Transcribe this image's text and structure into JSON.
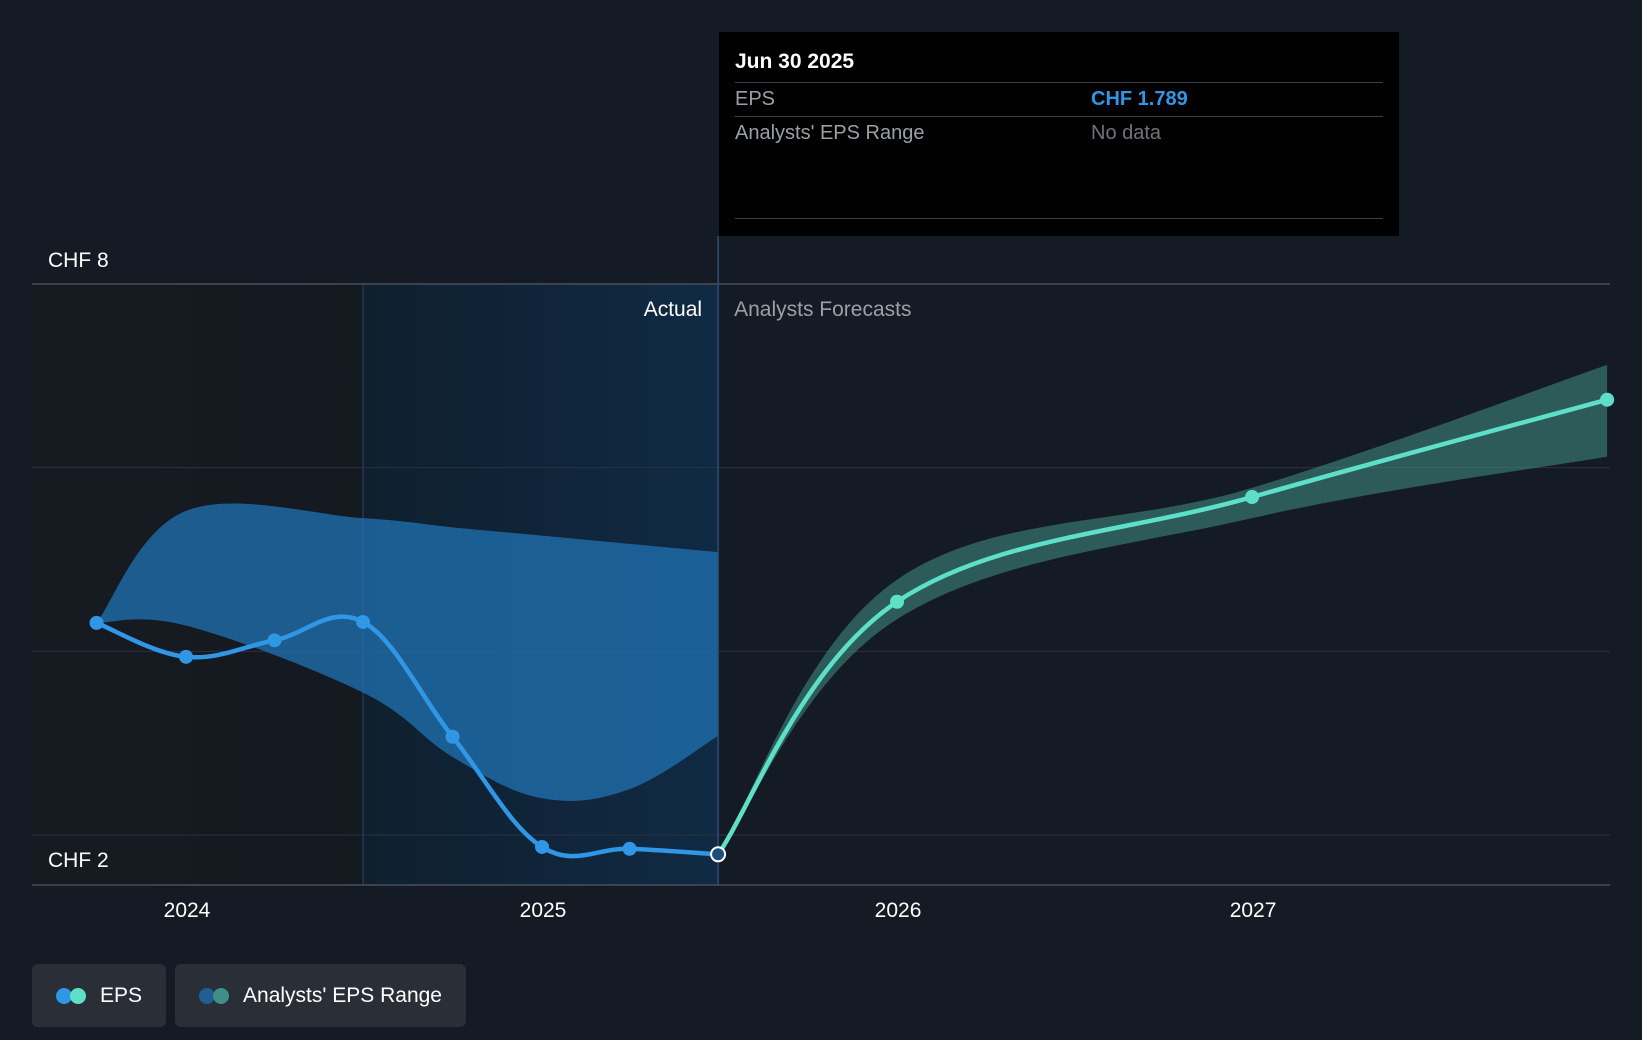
{
  "chart_data": {
    "type": "line",
    "currency": "CHF",
    "y_axis_labels": [
      "CHF 8",
      "CHF 2"
    ],
    "ylim": [
      2,
      8
    ],
    "xlim": [
      "2023-09-01",
      "2027-12-31"
    ],
    "x_tick_labels": [
      "2024",
      "2025",
      "2026",
      "2027"
    ],
    "grid": true,
    "region_labels": {
      "actual": "Actual",
      "forecast": "Analysts Forecasts"
    },
    "series": [
      {
        "name": "EPS",
        "kind": "actual",
        "color": "#2f97e6",
        "x": [
          "2023-09-30",
          "2023-12-31",
          "2024-03-31",
          "2024-06-30",
          "2024-09-30",
          "2024-12-31",
          "2025-03-31",
          "2025-06-30"
        ],
        "values": [
          4.31,
          3.94,
          4.12,
          4.32,
          3.07,
          1.87,
          1.85,
          1.79
        ]
      },
      {
        "name": "EPS",
        "kind": "forecast",
        "color": "#5ee0c8",
        "x": [
          "2025-06-30",
          "2025-12-31",
          "2026-12-31",
          "2027-12-31"
        ],
        "values": [
          1.79,
          4.54,
          5.68,
          6.74
        ]
      }
    ],
    "ranges": [
      {
        "name": "Analysts' EPS Range",
        "kind": "actual",
        "color": "#1f6fae",
        "x": [
          "2023-09-30",
          "2023-12-31",
          "2024-06-30",
          "2024-09-30",
          "2024-12-31",
          "2025-03-31",
          "2025-06-30"
        ],
        "high": [
          4.31,
          5.53,
          5.45,
          5.35,
          5.26,
          5.17,
          5.08
        ],
        "low": [
          4.31,
          4.28,
          3.55,
          2.85,
          2.4,
          2.5,
          3.08
        ]
      },
      {
        "name": "Analysts' EPS Range",
        "kind": "forecast",
        "color": "#3f8f86",
        "x": [
          "2025-06-30",
          "2025-12-31",
          "2026-12-31",
          "2027-12-31"
        ],
        "high": [
          1.79,
          4.78,
          5.78,
          7.12
        ],
        "low": [
          1.79,
          4.35,
          5.45,
          6.12
        ]
      }
    ]
  },
  "tooltip": {
    "date": "Jun 30 2025",
    "rows": [
      {
        "label": "EPS",
        "value": "CHF 1.789"
      },
      {
        "label": "Analysts' EPS Range",
        "value": "No data"
      }
    ]
  },
  "legend": {
    "items": [
      {
        "label": "EPS",
        "colors": [
          "#2f97e6",
          "#5ee0c8"
        ]
      },
      {
        "label": "Analysts' EPS Range",
        "colors": [
          "#1f5f94",
          "#3f8f86"
        ]
      }
    ]
  }
}
